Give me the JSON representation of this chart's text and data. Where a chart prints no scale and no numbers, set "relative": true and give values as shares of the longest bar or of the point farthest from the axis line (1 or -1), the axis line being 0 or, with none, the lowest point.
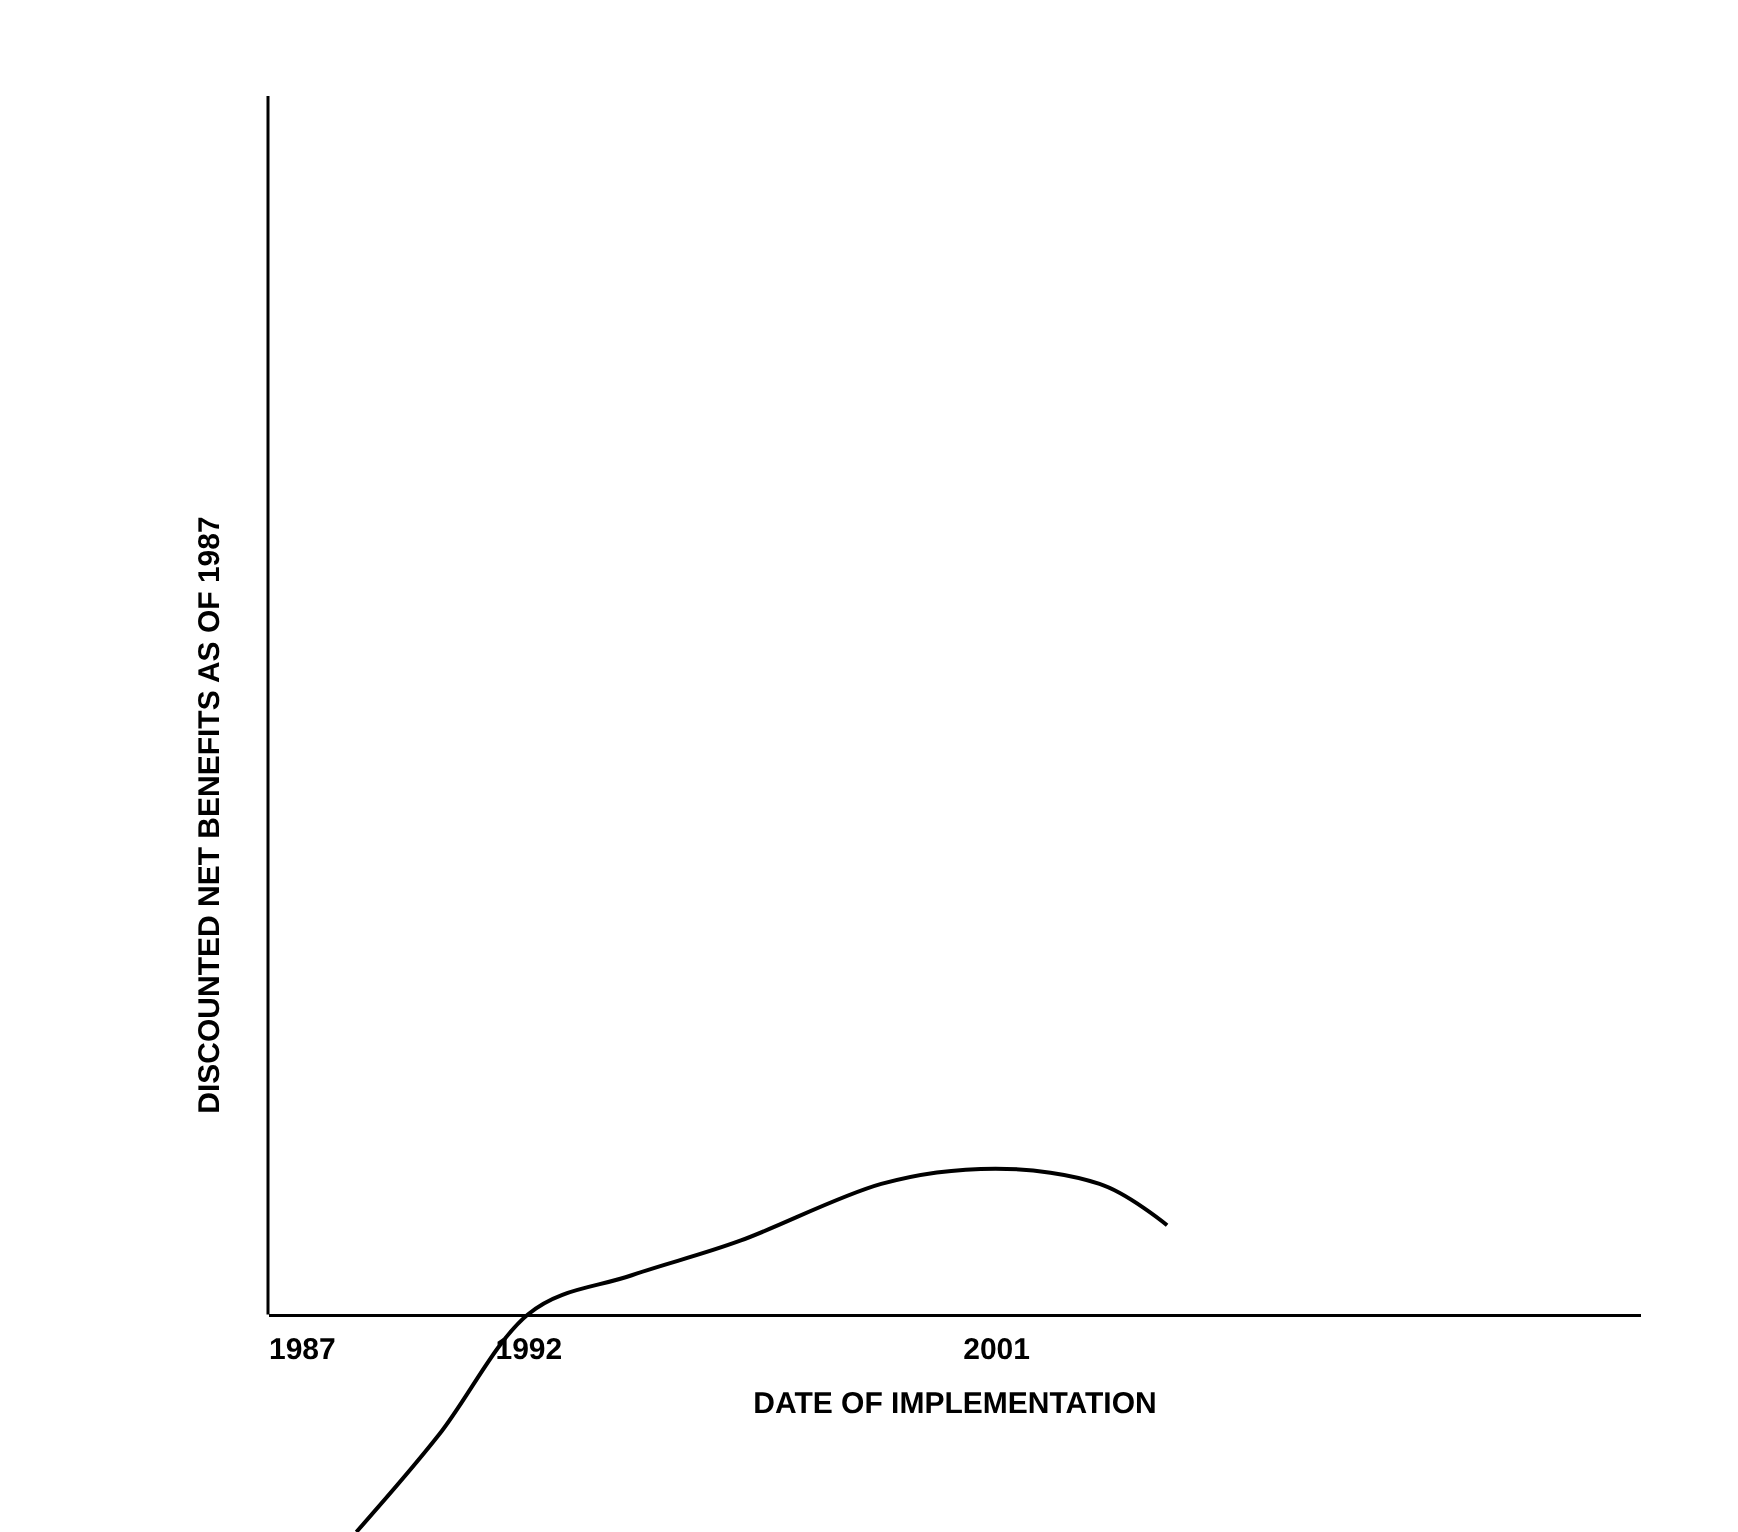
{
  "chart_data": {
    "type": "line",
    "xlabel": "DATE OF IMPLEMENTATION",
    "ylabel": "DISCOUNTED NET BENEFITS AS OF 1987",
    "relative": true,
    "tick_labels": "x",
    "xlim": [
      1987,
      2013.4
    ],
    "xticks": [
      1987,
      1992,
      2001
    ],
    "series": [
      {
        "color": "#000000",
        "x": [
          1988.7,
          1990.3,
          1992,
          1994,
          1996.1,
          1998.8,
          2001,
          2003,
          2004.3
        ],
        "values": [
          -1,
          -0.55,
          0,
          0.18,
          0.34,
          0.6,
          0.67,
          0.6,
          0.41
        ]
      }
    ]
  }
}
